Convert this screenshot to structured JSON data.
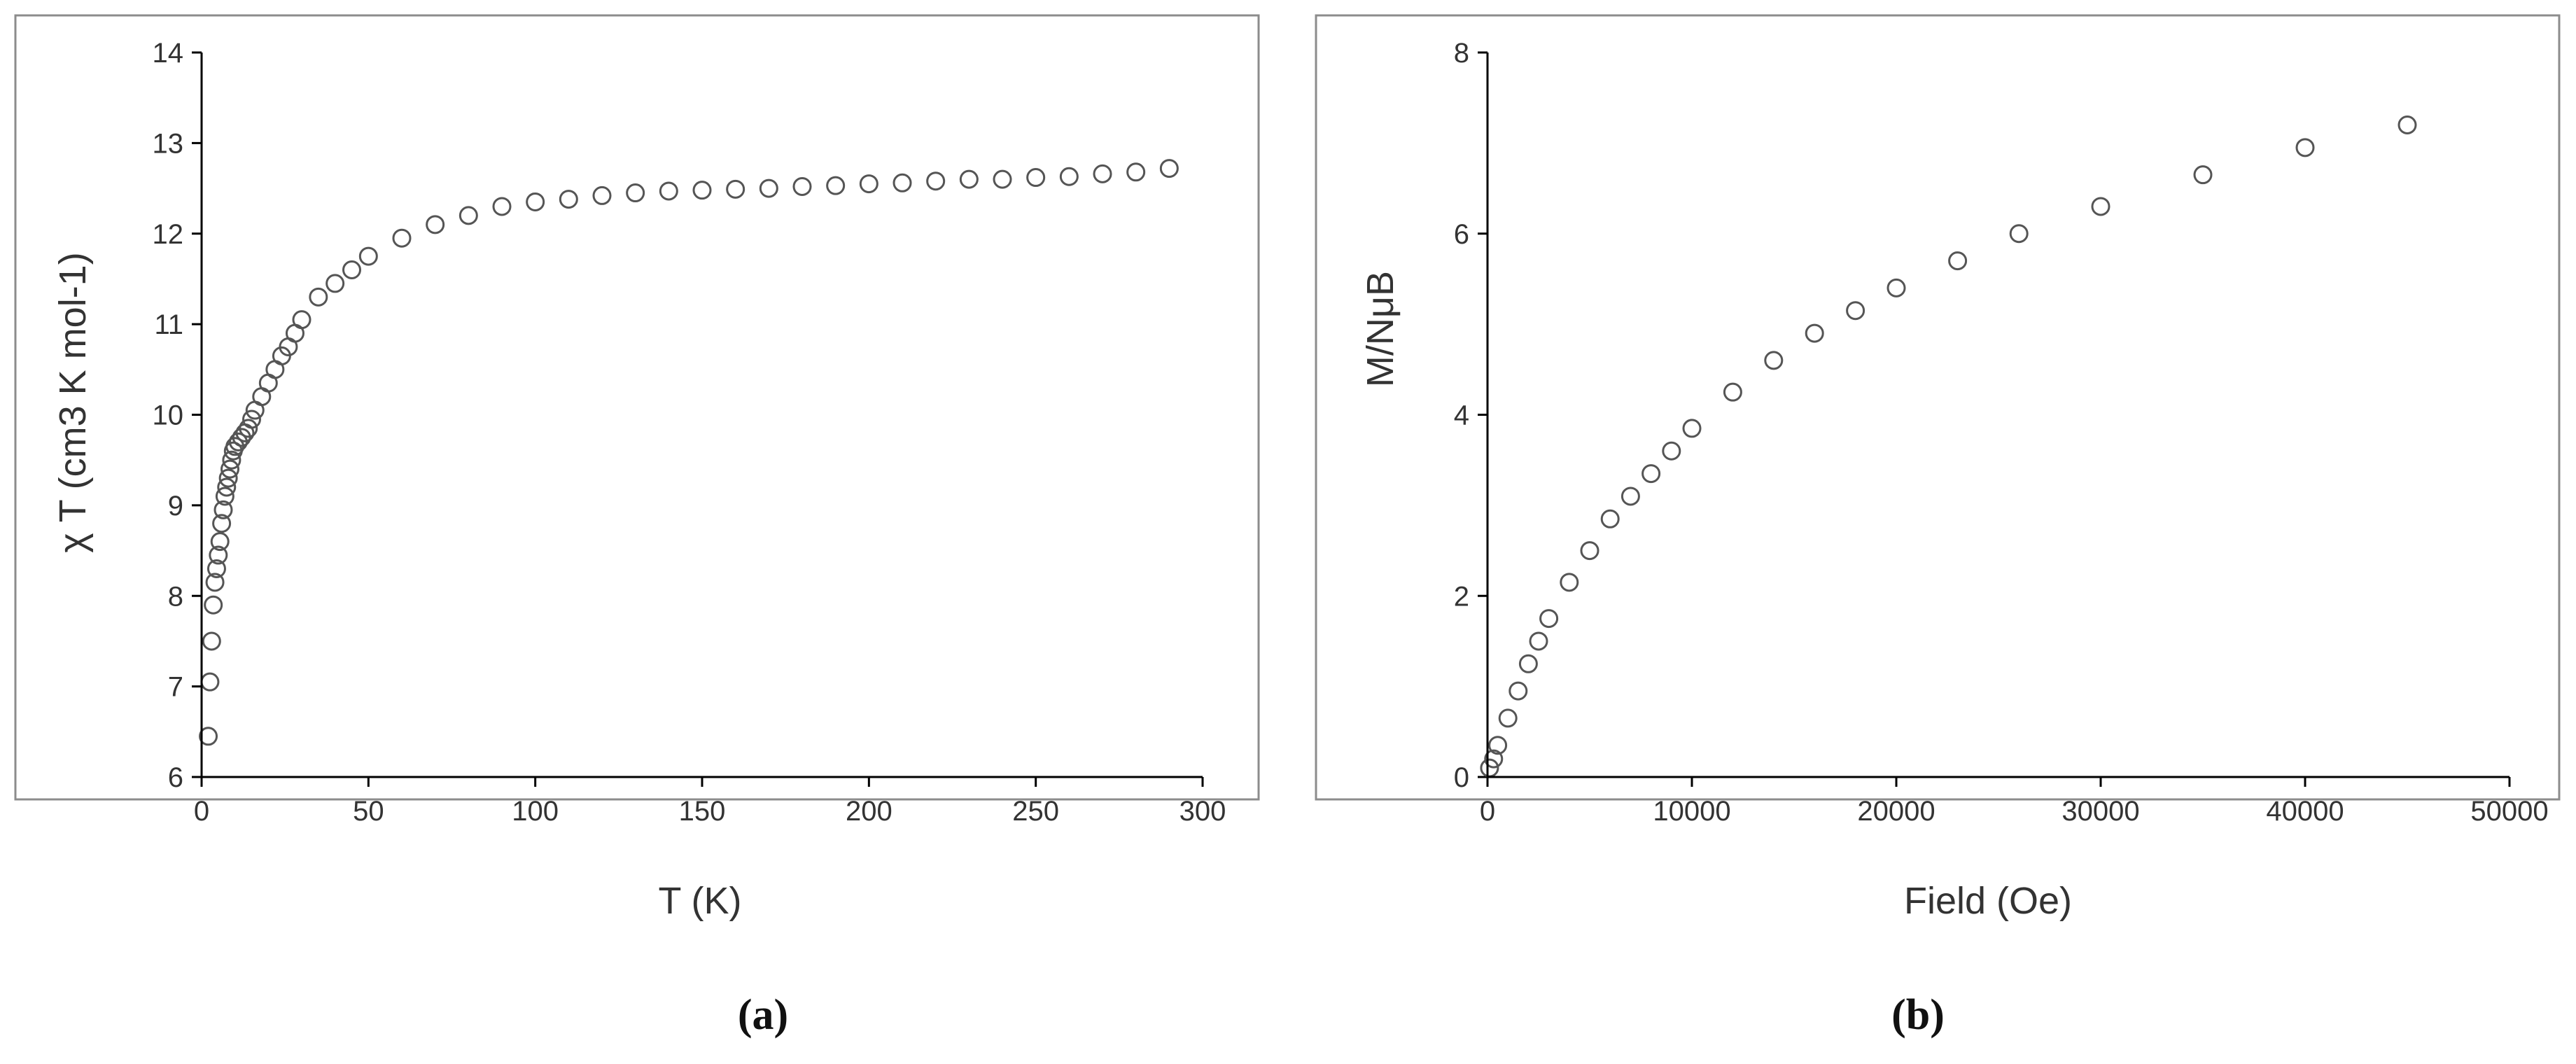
{
  "chart_data": [
    {
      "type": "scatter",
      "panel_label": "(a)",
      "xlabel": "T (K)",
      "ylabel": "χ T (cm3 K mol-1)",
      "xlim": [
        0,
        300
      ],
      "ylim": [
        6,
        14
      ],
      "x_ticks": [
        "0",
        "50",
        "100",
        "150",
        "200",
        "250",
        "300"
      ],
      "y_ticks": [
        "6",
        "7",
        "8",
        "9",
        "10",
        "11",
        "12",
        "13",
        "14"
      ],
      "marker": "open-circle",
      "grid": false,
      "series": [
        {
          "x": [
            2,
            2.5,
            3,
            3.5,
            4,
            4.5,
            5,
            5.5,
            6,
            6.5,
            7,
            7.5,
            8,
            8.5,
            9,
            9.5,
            10,
            11,
            12,
            13,
            14,
            15,
            16,
            18,
            20,
            22,
            24,
            26,
            28,
            30,
            35,
            40,
            45,
            50,
            60,
            70,
            80,
            90,
            100,
            110,
            120,
            130,
            140,
            150,
            160,
            170,
            180,
            190,
            200,
            210,
            220,
            230,
            240,
            250,
            260,
            270,
            280,
            290
          ],
          "y": [
            6.45,
            7.05,
            7.5,
            7.9,
            8.15,
            8.3,
            8.45,
            8.6,
            8.8,
            8.95,
            9.1,
            9.2,
            9.3,
            9.4,
            9.5,
            9.6,
            9.65,
            9.7,
            9.75,
            9.8,
            9.85,
            9.95,
            10.05,
            10.2,
            10.35,
            10.5,
            10.65,
            10.75,
            10.9,
            11.05,
            11.3,
            11.45,
            11.6,
            11.75,
            11.95,
            12.1,
            12.2,
            12.3,
            12.35,
            12.38,
            12.42,
            12.45,
            12.47,
            12.48,
            12.49,
            12.5,
            12.52,
            12.53,
            12.55,
            12.56,
            12.58,
            12.6,
            12.6,
            12.62,
            12.63,
            12.66,
            12.68,
            12.72
          ]
        }
      ]
    },
    {
      "type": "scatter",
      "panel_label": "(b)",
      "xlabel": "Field (Oe)",
      "ylabel": "M/NμB",
      "xlim": [
        0,
        50000
      ],
      "ylim": [
        0,
        8
      ],
      "x_ticks": [
        "0",
        "10000",
        "20000",
        "30000",
        "40000",
        "50000"
      ],
      "y_ticks": [
        "0",
        "2",
        "4",
        "6",
        "8"
      ],
      "marker": "open-circle",
      "grid": false,
      "series": [
        {
          "x": [
            100,
            300,
            500,
            1000,
            1500,
            2000,
            2500,
            3000,
            4000,
            5000,
            6000,
            7000,
            8000,
            9000,
            10000,
            12000,
            14000,
            16000,
            18000,
            20000,
            23000,
            26000,
            30000,
            35000,
            40000,
            45000
          ],
          "y": [
            0.1,
            0.2,
            0.35,
            0.65,
            0.95,
            1.25,
            1.5,
            1.75,
            2.15,
            2.5,
            2.85,
            3.1,
            3.35,
            3.6,
            3.85,
            4.25,
            4.6,
            4.9,
            5.15,
            5.4,
            5.7,
            6.0,
            6.3,
            6.65,
            6.95,
            7.2
          ]
        }
      ]
    }
  ]
}
